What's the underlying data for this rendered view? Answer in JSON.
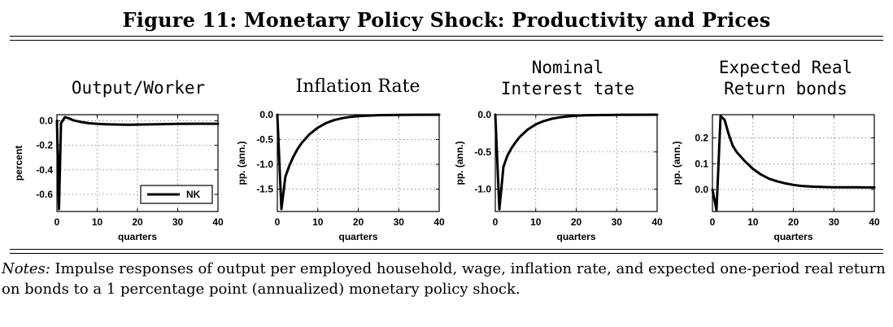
{
  "figure": {
    "title": "Figure 11: Monetary Policy Shock: Productivity and Prices",
    "notes_label": "Notes:",
    "notes_text": " Impulse responses of output per employed household, wage, inflation rate, and expected one-period real return on bonds to a 1 percentage point (annualized) monetary policy shock."
  },
  "chart_data": [
    {
      "type": "line",
      "title": "Output/Worker",
      "xlabel": "quarters",
      "ylabel": "percent",
      "xlim": [
        0,
        40
      ],
      "ylim": [
        -0.74,
        0.05
      ],
      "xticks": [
        0,
        10,
        20,
        30,
        40
      ],
      "yticks": [
        0.0,
        -0.2,
        -0.4,
        -0.6
      ],
      "ytick_labels": [
        "0.0",
        "-0.2",
        "-0.4",
        "-0.6"
      ],
      "grid": true,
      "legend": {
        "position": "bottom-right",
        "entries": [
          "NK"
        ]
      },
      "series": [
        {
          "name": "NK",
          "x": [
            0,
            0.5,
            1,
            2,
            3,
            4,
            6,
            8,
            10,
            12,
            15,
            18,
            20,
            25,
            30,
            35,
            40
          ],
          "y": [
            0.0,
            -0.72,
            -0.02,
            0.03,
            0.02,
            0.005,
            -0.01,
            -0.02,
            -0.025,
            -0.028,
            -0.03,
            -0.032,
            -0.03,
            -0.028,
            -0.025,
            -0.024,
            -0.024
          ]
        }
      ]
    },
    {
      "type": "line",
      "title": "Inflation Rate",
      "xlabel": "quarters",
      "ylabel": "pp. (ann.)",
      "xlim": [
        0,
        40
      ],
      "ylim": [
        -1.95,
        0.0
      ],
      "xticks": [
        0,
        10,
        20,
        30,
        40
      ],
      "yticks": [
        0.0,
        -0.5,
        -1.0,
        -1.5
      ],
      "ytick_labels": [
        "0.0",
        "-0.5",
        "-1.0",
        "-1.5"
      ],
      "grid": true,
      "series": [
        {
          "x": [
            0,
            1,
            2,
            3,
            4,
            5,
            6,
            8,
            10,
            12,
            14,
            16,
            18,
            20,
            22,
            25,
            30,
            35,
            40
          ],
          "y": [
            0.0,
            -1.9,
            -1.25,
            -1.02,
            -0.84,
            -0.69,
            -0.57,
            -0.39,
            -0.26,
            -0.17,
            -0.11,
            -0.07,
            -0.045,
            -0.03,
            -0.02,
            -0.01,
            -0.004,
            -0.002,
            0.0
          ]
        }
      ]
    },
    {
      "type": "line",
      "title": "Nominal\nInterest tate",
      "xlabel": "quarters",
      "ylabel": "pp. (ann.)",
      "xlim": [
        0,
        40
      ],
      "ylim": [
        -1.3,
        0.0
      ],
      "xticks": [
        0,
        10,
        20,
        30,
        40
      ],
      "yticks": [
        0.0,
        -0.5,
        -1.0
      ],
      "ytick_labels": [
        "0.0",
        "-0.5",
        "-1.0"
      ],
      "grid": true,
      "series": [
        {
          "x": [
            0,
            1,
            2,
            3,
            4,
            5,
            6,
            8,
            10,
            12,
            14,
            16,
            18,
            20,
            22,
            25,
            30,
            35,
            40
          ],
          "y": [
            0.0,
            -1.27,
            -0.7,
            -0.55,
            -0.45,
            -0.37,
            -0.3,
            -0.2,
            -0.13,
            -0.085,
            -0.055,
            -0.035,
            -0.022,
            -0.014,
            -0.009,
            -0.005,
            -0.002,
            -0.001,
            0.0
          ]
        }
      ]
    },
    {
      "type": "line",
      "title": "Expected Real\nReturn bonds",
      "xlabel": "quarters",
      "ylabel": "pp. (ann.)",
      "xlim": [
        0,
        40
      ],
      "ylim": [
        -0.085,
        0.29
      ],
      "xticks": [
        0,
        10,
        20,
        30,
        40
      ],
      "yticks": [
        0.0,
        0.1,
        0.2
      ],
      "ytick_labels": [
        "0.0",
        "0.1",
        "0.2"
      ],
      "grid": true,
      "series": [
        {
          "x": [
            0,
            1,
            2,
            3,
            4,
            5,
            6,
            8,
            10,
            12,
            14,
            16,
            18,
            20,
            22,
            25,
            30,
            35,
            40
          ],
          "y": [
            0.0,
            -0.08,
            0.285,
            0.27,
            0.215,
            0.17,
            0.145,
            0.11,
            0.08,
            0.058,
            0.042,
            0.032,
            0.024,
            0.018,
            0.014,
            0.011,
            0.009,
            0.009,
            0.008
          ]
        }
      ]
    }
  ]
}
